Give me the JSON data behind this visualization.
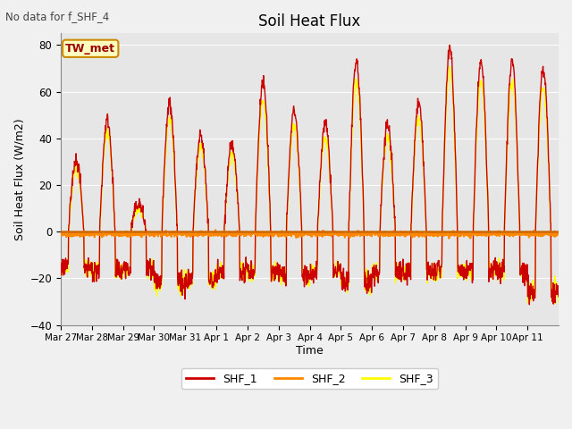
{
  "title": "Soil Heat Flux",
  "ylabel": "Soil Heat Flux (W/m2)",
  "xlabel": "Time",
  "top_left_text": "No data for f_SHF_4",
  "legend_label_text": "TW_met",
  "ylim": [
    -40,
    85
  ],
  "yticks": [
    -40,
    -20,
    0,
    20,
    40,
    60,
    80
  ],
  "color_SHF_1": "#cc0000",
  "color_SHF_2": "#ff8800",
  "color_SHF_3": "#ffff00",
  "background_color": "#ebebeb",
  "plot_bg_color": "#e8e8e8",
  "xtick_labels": [
    "Mar 27",
    "Mar 28",
    "Mar 29",
    "Mar 30",
    "Mar 31",
    "Apr 1",
    "Apr 2",
    "Apr 3",
    "Apr 4",
    "Apr 5",
    "Apr 6",
    "Apr 7",
    "Apr 8",
    "Apr 9",
    "Apr 10",
    "Apr 11"
  ],
  "shf1_day_peaks": [
    31,
    48,
    12,
    55,
    41,
    37,
    64,
    52,
    46,
    73,
    46,
    55,
    79,
    73,
    73,
    70
  ],
  "shf1_night_min": [
    -18,
    -20,
    -19,
    -26,
    -24,
    -20,
    -20,
    -22,
    -20,
    -25,
    -20,
    -20,
    -20,
    -20,
    -20,
    -30
  ],
  "zero_line_color": "#cc6600",
  "linewidth": 1.0,
  "n_days": 16
}
